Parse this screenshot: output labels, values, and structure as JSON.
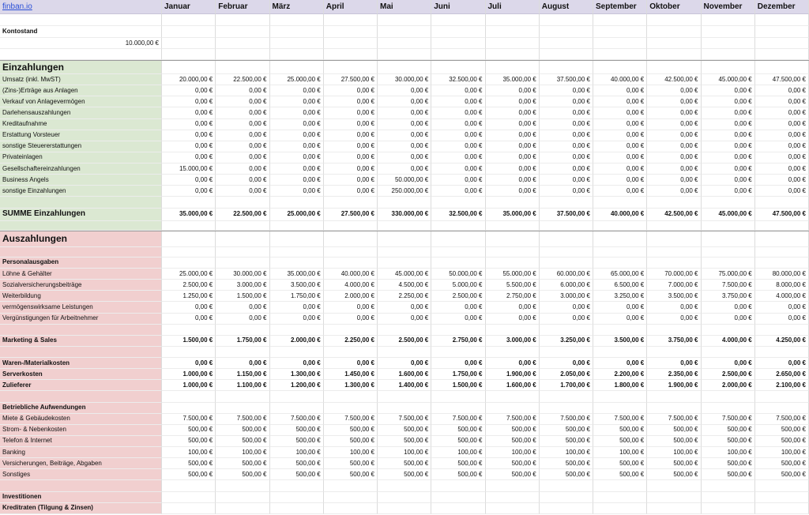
{
  "header": {
    "brand": "finban.io",
    "months": [
      "Januar",
      "Februar",
      "März",
      "April",
      "Mai",
      "Juni",
      "Juli",
      "August",
      "September",
      "Oktober",
      "November",
      "Dezember"
    ]
  },
  "kontostand": {
    "label": "Kontostand",
    "value": "10.000,00 €"
  },
  "einzahlungen": {
    "title": "Einzahlungen",
    "rows": [
      {
        "label": "Umsatz (inkl. MwST)",
        "values": [
          "20.000,00 €",
          "22.500,00 €",
          "25.000,00 €",
          "27.500,00 €",
          "30.000,00 €",
          "32.500,00 €",
          "35.000,00 €",
          "37.500,00 €",
          "40.000,00 €",
          "42.500,00 €",
          "45.000,00 €",
          "47.500,00 €"
        ]
      },
      {
        "label": "(Zins-)Erträge aus Anlagen",
        "values": [
          "0,00 €",
          "0,00 €",
          "0,00 €",
          "0,00 €",
          "0,00 €",
          "0,00 €",
          "0,00 €",
          "0,00 €",
          "0,00 €",
          "0,00 €",
          "0,00 €",
          "0,00 €"
        ]
      },
      {
        "label": "Verkauf von Anlagevermögen",
        "values": [
          "0,00 €",
          "0,00 €",
          "0,00 €",
          "0,00 €",
          "0,00 €",
          "0,00 €",
          "0,00 €",
          "0,00 €",
          "0,00 €",
          "0,00 €",
          "0,00 €",
          "0,00 €"
        ]
      },
      {
        "label": "Darlehensauszahlungen",
        "values": [
          "0,00 €",
          "0,00 €",
          "0,00 €",
          "0,00 €",
          "0,00 €",
          "0,00 €",
          "0,00 €",
          "0,00 €",
          "0,00 €",
          "0,00 €",
          "0,00 €",
          "0,00 €"
        ]
      },
      {
        "label": "Kreditaufnahme",
        "values": [
          "0,00 €",
          "0,00 €",
          "0,00 €",
          "0,00 €",
          "0,00 €",
          "0,00 €",
          "0,00 €",
          "0,00 €",
          "0,00 €",
          "0,00 €",
          "0,00 €",
          "0,00 €"
        ]
      },
      {
        "label": "Erstattung Vorsteuer",
        "values": [
          "0,00 €",
          "0,00 €",
          "0,00 €",
          "0,00 €",
          "0,00 €",
          "0,00 €",
          "0,00 €",
          "0,00 €",
          "0,00 €",
          "0,00 €",
          "0,00 €",
          "0,00 €"
        ]
      },
      {
        "label": "sonstige Steuererstattungen",
        "values": [
          "0,00 €",
          "0,00 €",
          "0,00 €",
          "0,00 €",
          "0,00 €",
          "0,00 €",
          "0,00 €",
          "0,00 €",
          "0,00 €",
          "0,00 €",
          "0,00 €",
          "0,00 €"
        ]
      },
      {
        "label": "Privateinlagen",
        "values": [
          "0,00 €",
          "0,00 €",
          "0,00 €",
          "0,00 €",
          "0,00 €",
          "0,00 €",
          "0,00 €",
          "0,00 €",
          "0,00 €",
          "0,00 €",
          "0,00 €",
          "0,00 €"
        ]
      },
      {
        "label": "Gesellschaftereinzahlungen",
        "values": [
          "15.000,00 €",
          "0,00 €",
          "0,00 €",
          "0,00 €",
          "0,00 €",
          "0,00 €",
          "0,00 €",
          "0,00 €",
          "0,00 €",
          "0,00 €",
          "0,00 €",
          "0,00 €"
        ]
      },
      {
        "label": "Business Angels",
        "values": [
          "0,00 €",
          "0,00 €",
          "0,00 €",
          "0,00 €",
          "50.000,00 €",
          "0,00 €",
          "0,00 €",
          "0,00 €",
          "0,00 €",
          "0,00 €",
          "0,00 €",
          "0,00 €"
        ]
      },
      {
        "label": "sonstige Einzahlungen",
        "values": [
          "0,00 €",
          "0,00 €",
          "0,00 €",
          "0,00 €",
          "250.000,00 €",
          "0,00 €",
          "0,00 €",
          "0,00 €",
          "0,00 €",
          "0,00 €",
          "0,00 €",
          "0,00 €"
        ]
      }
    ],
    "sum": {
      "label": "SUMME Einzahlungen",
      "values": [
        "35.000,00 €",
        "22.500,00 €",
        "25.000,00 €",
        "27.500,00 €",
        "330.000,00 €",
        "32.500,00 €",
        "35.000,00 €",
        "37.500,00 €",
        "40.000,00 €",
        "42.500,00 €",
        "45.000,00 €",
        "47.500,00 €"
      ]
    }
  },
  "auszahlungen": {
    "title": "Auszahlungen",
    "groups": [
      {
        "headings": [
          {
            "label": "Personalausgaben"
          }
        ],
        "rows": [
          {
            "label": "Löhne & Gehälter",
            "values": [
              "25.000,00 €",
              "30.000,00 €",
              "35.000,00 €",
              "40.000,00 €",
              "45.000,00 €",
              "50.000,00 €",
              "55.000,00 €",
              "60.000,00 €",
              "65.000,00 €",
              "70.000,00 €",
              "75.000,00 €",
              "80.000,00 €"
            ]
          },
          {
            "label": "Sozialversicherungsbeiträge",
            "values": [
              "2.500,00 €",
              "3.000,00 €",
              "3.500,00 €",
              "4.000,00 €",
              "4.500,00 €",
              "5.000,00 €",
              "5.500,00 €",
              "6.000,00 €",
              "6.500,00 €",
              "7.000,00 €",
              "7.500,00 €",
              "8.000,00 €"
            ]
          },
          {
            "label": "Weiterbildung",
            "values": [
              "1.250,00 €",
              "1.500,00 €",
              "1.750,00 €",
              "2.000,00 €",
              "2.250,00 €",
              "2.500,00 €",
              "2.750,00 €",
              "3.000,00 €",
              "3.250,00 €",
              "3.500,00 €",
              "3.750,00 €",
              "4.000,00 €"
            ]
          },
          {
            "label": "vermögenswirksame Leistungen",
            "values": [
              "0,00 €",
              "0,00 €",
              "0,00 €",
              "0,00 €",
              "0,00 €",
              "0,00 €",
              "0,00 €",
              "0,00 €",
              "0,00 €",
              "0,00 €",
              "0,00 €",
              "0,00 €"
            ]
          },
          {
            "label": "Vergünstigungen für Arbeitnehmer",
            "values": [
              "0,00 €",
              "0,00 €",
              "0,00 €",
              "0,00 €",
              "0,00 €",
              "0,00 €",
              "0,00 €",
              "0,00 €",
              "0,00 €",
              "0,00 €",
              "0,00 €",
              "0,00 €"
            ]
          }
        ]
      },
      {
        "headings": [
          {
            "label": "Marketing & Sales",
            "values": [
              "1.500,00 €",
              "1.750,00 €",
              "2.000,00 €",
              "2.250,00 €",
              "2.500,00 €",
              "2.750,00 €",
              "3.000,00 €",
              "3.250,00 €",
              "3.500,00 €",
              "3.750,00 €",
              "4.000,00 €",
              "4.250,00 €"
            ]
          }
        ],
        "rows": []
      },
      {
        "headings": [
          {
            "label": "Waren-/Materialkosten",
            "values": [
              "0,00 €",
              "0,00 €",
              "0,00 €",
              "0,00 €",
              "0,00 €",
              "0,00 €",
              "0,00 €",
              "0,00 €",
              "0,00 €",
              "0,00 €",
              "0,00 €",
              "0,00 €"
            ]
          },
          {
            "label": "Serverkosten",
            "values": [
              "1.000,00 €",
              "1.150,00 €",
              "1.300,00 €",
              "1.450,00 €",
              "1.600,00 €",
              "1.750,00 €",
              "1.900,00 €",
              "2.050,00 €",
              "2.200,00 €",
              "2.350,00 €",
              "2.500,00 €",
              "2.650,00 €"
            ]
          },
          {
            "label": "Zulieferer",
            "values": [
              "1.000,00 €",
              "1.100,00 €",
              "1.200,00 €",
              "1.300,00 €",
              "1.400,00 €",
              "1.500,00 €",
              "1.600,00 €",
              "1.700,00 €",
              "1.800,00 €",
              "1.900,00 €",
              "2.000,00 €",
              "2.100,00 €"
            ]
          }
        ],
        "rows": []
      },
      {
        "headings": [
          {
            "label": "Betriebliche Aufwendungen"
          }
        ],
        "rows": [
          {
            "label": "Miete & Gebäudekosten",
            "values": [
              "7.500,00 €",
              "7.500,00 €",
              "7.500,00 €",
              "7.500,00 €",
              "7.500,00 €",
              "7.500,00 €",
              "7.500,00 €",
              "7.500,00 €",
              "7.500,00 €",
              "7.500,00 €",
              "7.500,00 €",
              "7.500,00 €"
            ]
          },
          {
            "label": "Strom- & Nebenkosten",
            "values": [
              "500,00 €",
              "500,00 €",
              "500,00 €",
              "500,00 €",
              "500,00 €",
              "500,00 €",
              "500,00 €",
              "500,00 €",
              "500,00 €",
              "500,00 €",
              "500,00 €",
              "500,00 €"
            ]
          },
          {
            "label": "Telefon & Internet",
            "values": [
              "500,00 €",
              "500,00 €",
              "500,00 €",
              "500,00 €",
              "500,00 €",
              "500,00 €",
              "500,00 €",
              "500,00 €",
              "500,00 €",
              "500,00 €",
              "500,00 €",
              "500,00 €"
            ]
          },
          {
            "label": "Banking",
            "values": [
              "100,00 €",
              "100,00 €",
              "100,00 €",
              "100,00 €",
              "100,00 €",
              "100,00 €",
              "100,00 €",
              "100,00 €",
              "100,00 €",
              "100,00 €",
              "100,00 €",
              "100,00 €"
            ]
          },
          {
            "label": "Versicherungen, Beiträge, Abgaben",
            "values": [
              "500,00 €",
              "500,00 €",
              "500,00 €",
              "500,00 €",
              "500,00 €",
              "500,00 €",
              "500,00 €",
              "500,00 €",
              "500,00 €",
              "500,00 €",
              "500,00 €",
              "500,00 €"
            ]
          },
          {
            "label": "Sonstiges",
            "values": [
              "500,00 €",
              "500,00 €",
              "500,00 €",
              "500,00 €",
              "500,00 €",
              "500,00 €",
              "500,00 €",
              "500,00 €",
              "500,00 €",
              "500,00 €",
              "500,00 €",
              "500,00 €"
            ]
          }
        ]
      },
      {
        "headings": [
          {
            "label": "Investitionen"
          },
          {
            "label": "Kreditraten (Tilgung & Zinsen)"
          }
        ],
        "rows": []
      }
    ]
  }
}
